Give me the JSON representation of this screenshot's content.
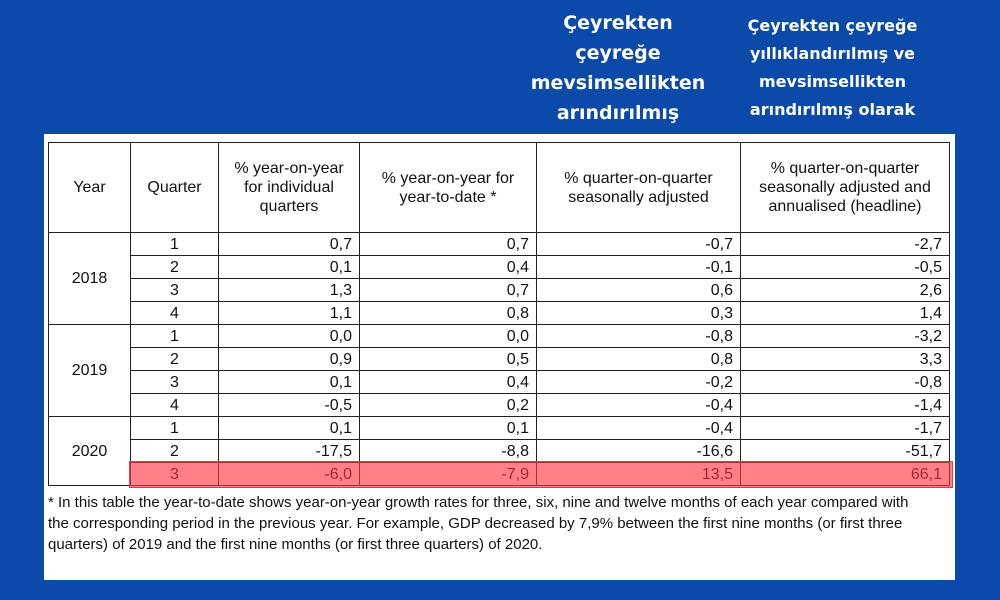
{
  "overlay_left": [
    "Çeyrekten",
    "çeyreğe",
    "mevsimsellikten",
    "arındırılmış"
  ],
  "overlay_right": [
    "Çeyrekten çeyreğe",
    "yıllıklandırılmış ve",
    "mevsimsellikten",
    "arındırılmış olarak"
  ],
  "table": {
    "headers": {
      "year": "Year",
      "quarter": "Quarter",
      "yoy_individual": "% year-on-year for individual quarters",
      "yoy_ytd": "% year-on-year for year-to-date *",
      "qoq_sa": "% quarter-on-quarter seasonally adjusted",
      "qoq_annualised": "% quarter-on-quarter seasonally adjusted and annualised (headline)"
    },
    "rows": [
      {
        "year": "2018",
        "quarter": "1",
        "yoy_individual": "0,7",
        "yoy_ytd": "0,7",
        "qoq_sa": "-0,7",
        "qoq_annualised": "-2,7"
      },
      {
        "year": "2018",
        "quarter": "2",
        "yoy_individual": "0,1",
        "yoy_ytd": "0,4",
        "qoq_sa": "-0,1",
        "qoq_annualised": "-0,5"
      },
      {
        "year": "2018",
        "quarter": "3",
        "yoy_individual": "1,3",
        "yoy_ytd": "0,7",
        "qoq_sa": "0,6",
        "qoq_annualised": "2,6"
      },
      {
        "year": "2018",
        "quarter": "4",
        "yoy_individual": "1,1",
        "yoy_ytd": "0,8",
        "qoq_sa": "0,3",
        "qoq_annualised": "1,4"
      },
      {
        "year": "2019",
        "quarter": "1",
        "yoy_individual": "0,0",
        "yoy_ytd": "0,0",
        "qoq_sa": "-0,8",
        "qoq_annualised": "-3,2"
      },
      {
        "year": "2019",
        "quarter": "2",
        "yoy_individual": "0,9",
        "yoy_ytd": "0,5",
        "qoq_sa": "0,8",
        "qoq_annualised": "3,3"
      },
      {
        "year": "2019",
        "quarter": "3",
        "yoy_individual": "0,1",
        "yoy_ytd": "0,4",
        "qoq_sa": "-0,2",
        "qoq_annualised": "-0,8"
      },
      {
        "year": "2019",
        "quarter": "4",
        "yoy_individual": "-0,5",
        "yoy_ytd": "0,2",
        "qoq_sa": "-0,4",
        "qoq_annualised": "-1,4"
      },
      {
        "year": "2020",
        "quarter": "1",
        "yoy_individual": "0,1",
        "yoy_ytd": "0,1",
        "qoq_sa": "-0,4",
        "qoq_annualised": "-1,7"
      },
      {
        "year": "2020",
        "quarter": "2",
        "yoy_individual": "-17,5",
        "yoy_ytd": "-8,8",
        "qoq_sa": "-16,6",
        "qoq_annualised": "-51,7"
      },
      {
        "year": "2020",
        "quarter": "3",
        "yoy_individual": "-6,0",
        "yoy_ytd": "-7,9",
        "qoq_sa": "13,5",
        "qoq_annualised": "66,1"
      }
    ],
    "highlighted_row_index": 10
  },
  "footnote": "* In this table the year-to-date shows year-on-year growth rates for three, six, nine and twelve months of each year compared with the corresponding period in the previous year. For example, GDP decreased by 7,9% between the first nine months (or first three quarters) of 2019 and the first nine months (or first three quarters) of 2020.",
  "colors": {
    "background": "#0b4aa8",
    "overlay_text": "#ffffff",
    "highlight": "#ff323c"
  }
}
